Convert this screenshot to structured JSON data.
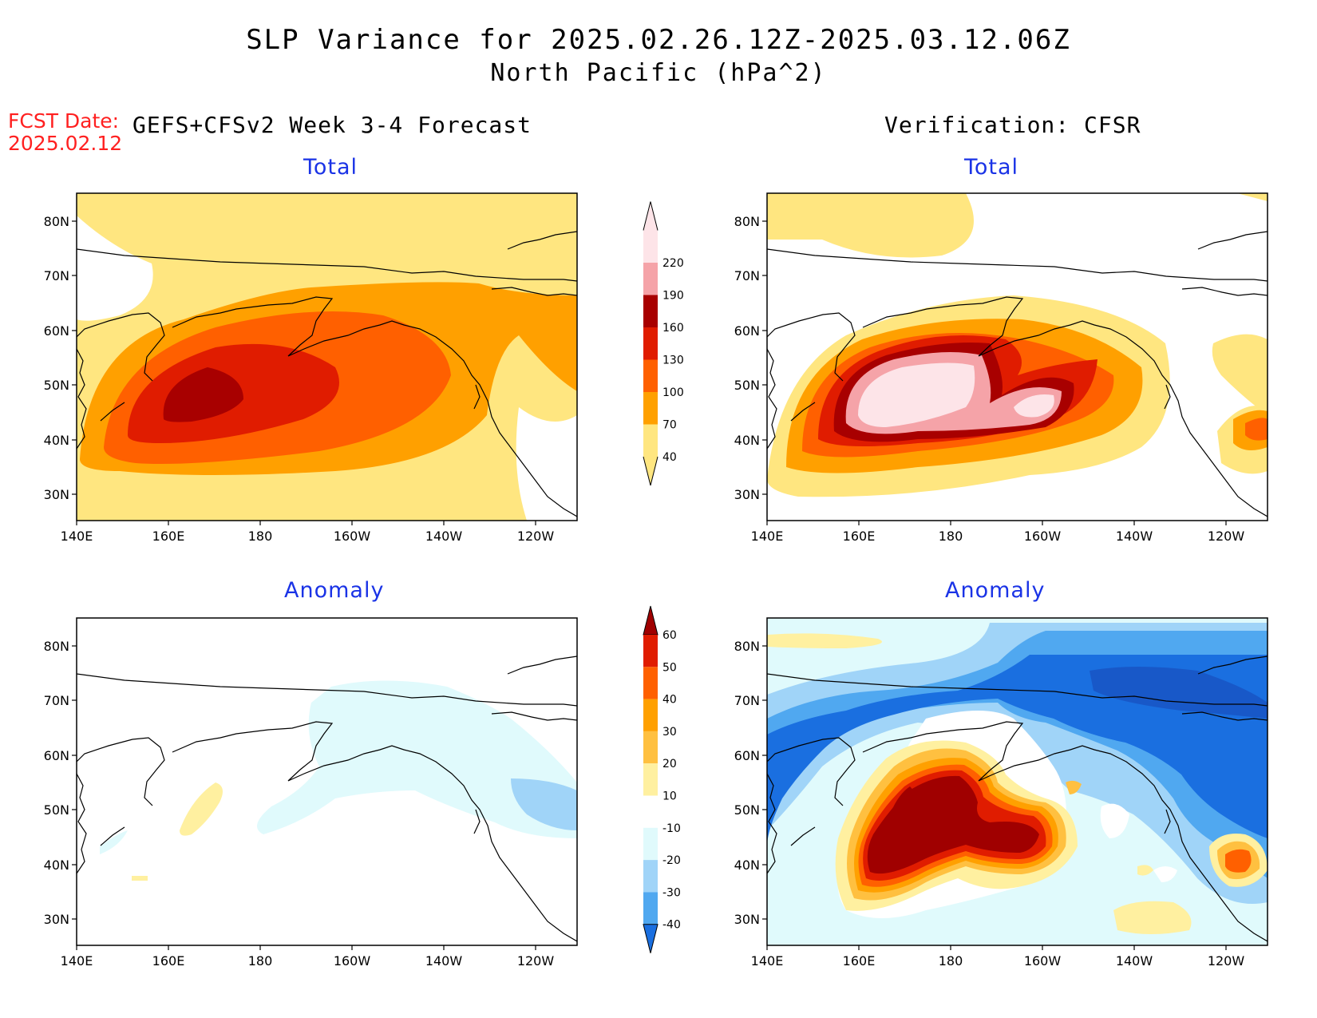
{
  "title": {
    "line1": "SLP Variance for 2025.02.26.12Z-2025.03.12.06Z",
    "line2": "North Pacific (hPa^2)"
  },
  "fcst": {
    "label": "FCST Date:",
    "date": "2025.02.12"
  },
  "headers": {
    "left": "GEFS+CFSv2 Week 3-4 Forecast",
    "right": "Verification: CFSR"
  },
  "panels": {
    "forecast_total": "Total",
    "verif_total": "Total",
    "forecast_anomaly": "Anomaly",
    "verif_anomaly": "Anomaly"
  },
  "axes": {
    "lon_ticks": [
      "140E",
      "160E",
      "180",
      "160W",
      "140W",
      "120W"
    ],
    "lat_ticks": [
      "80N",
      "70N",
      "60N",
      "50N",
      "40N",
      "30N"
    ]
  },
  "colorbars": {
    "total": {
      "levels": [
        "40",
        "70",
        "100",
        "130",
        "160",
        "190",
        "220"
      ],
      "colors": [
        "#ffe680",
        "#ffa000",
        "#ff6000",
        "#e01c00",
        "#a80000",
        "#f5a3a8",
        "#fde4e8"
      ]
    },
    "anomaly": {
      "levels": [
        "60",
        "50",
        "40",
        "30",
        "20",
        "10",
        "-10",
        "-20",
        "-30",
        "-40"
      ],
      "colors": [
        "#a00000",
        "#e01c00",
        "#ff6000",
        "#ffa000",
        "#ffc040",
        "#fff0a0",
        "#ffffff",
        "#e0fafc",
        "#a0d4f8",
        "#50a8f0",
        "#1a6fe0"
      ]
    }
  }
}
